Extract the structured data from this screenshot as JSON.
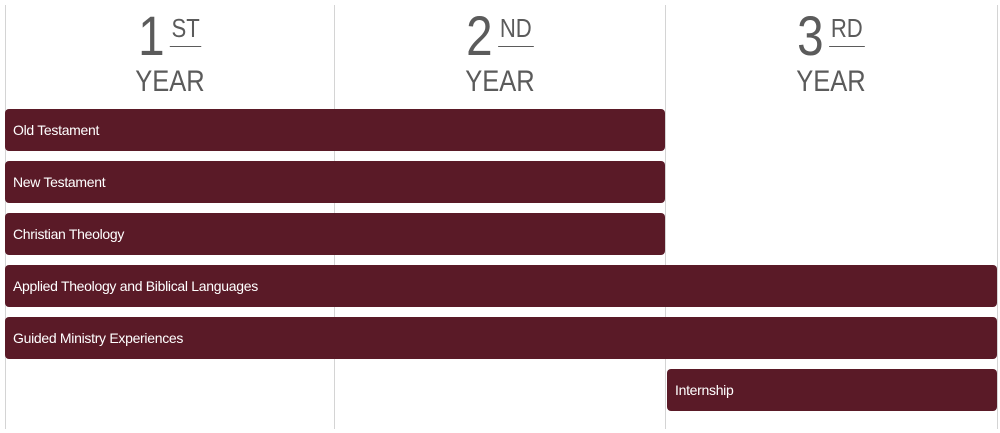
{
  "columns": [
    {
      "number": "1",
      "suffix": "ST",
      "label": "YEAR"
    },
    {
      "number": "2",
      "suffix": "ND",
      "label": "YEAR"
    },
    {
      "number": "3",
      "suffix": "RD",
      "label": "YEAR"
    }
  ],
  "courses": [
    "Old Testament",
    "New Testament",
    "Christian Theology",
    "Applied Theology and Biblical Languages",
    "Guided Ministry Experiences",
    "Internship"
  ]
}
